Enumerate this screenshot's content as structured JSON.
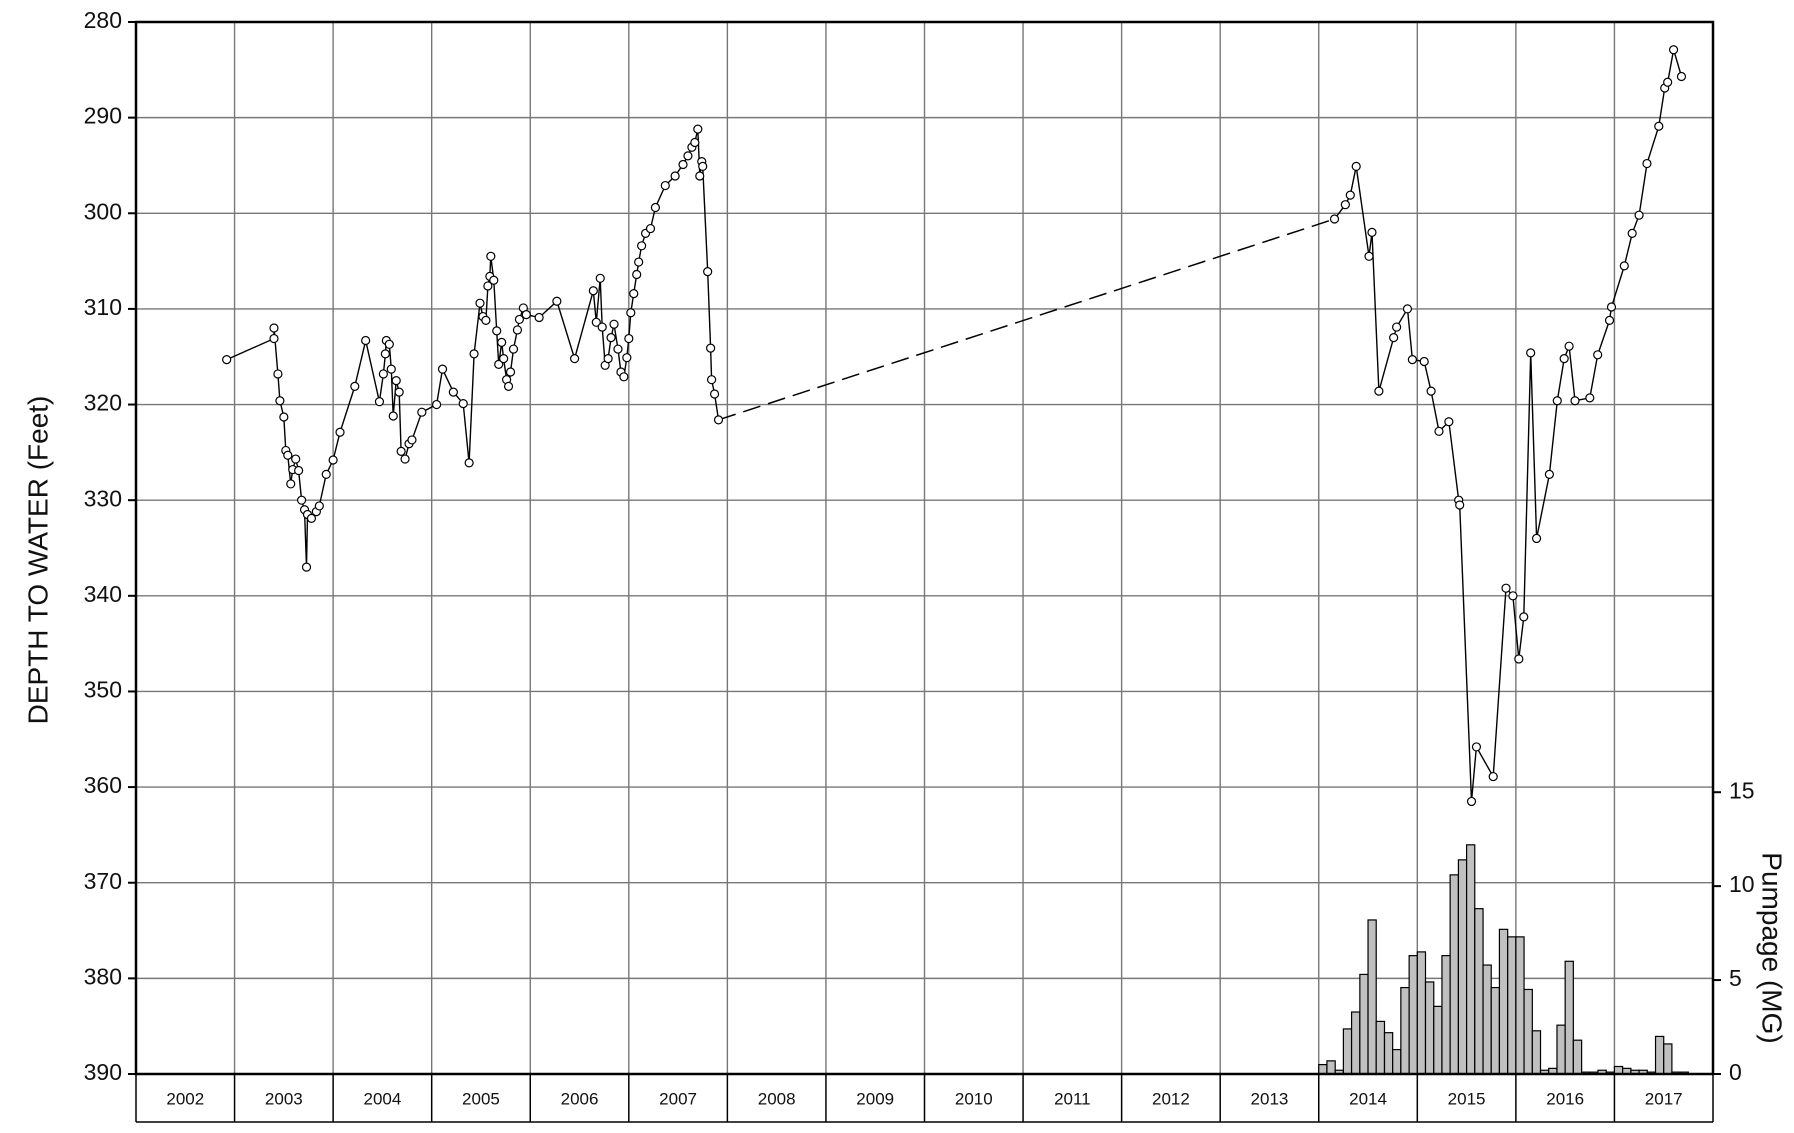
{
  "chart_data": {
    "type": "line",
    "ylabel": "DEPTH TO WATER (Feet)",
    "y2label": "Pumpage (MG)",
    "xlim": [
      2002,
      2018
    ],
    "xticks": [
      2002,
      2003,
      2004,
      2005,
      2006,
      2007,
      2008,
      2009,
      2010,
      2011,
      2012,
      2013,
      2014,
      2015,
      2016,
      2017
    ],
    "ylim": [
      280,
      390
    ],
    "y_reversed": true,
    "yticks": [
      280,
      290,
      300,
      310,
      320,
      330,
      340,
      350,
      360,
      370,
      380,
      390
    ],
    "y2lim": [
      0,
      56
    ],
    "y2ticks": [
      0,
      5,
      10,
      15
    ],
    "grid": true,
    "gap_line": "dashed",
    "x": [
      2002.92,
      2003.4,
      2003.4,
      2003.44,
      2003.46,
      2003.5,
      2003.52,
      2003.54,
      2003.57,
      2003.59,
      2003.62,
      2003.65,
      2003.68,
      2003.71,
      2003.73,
      2003.74,
      2003.78,
      2003.83,
      2003.86,
      2003.93,
      2004.0,
      2004.07,
      2004.22,
      2004.33,
      2004.47,
      2004.51,
      2004.53,
      2004.54,
      2004.57,
      2004.59,
      2004.61,
      2004.64,
      2004.67,
      2004.69,
      2004.73,
      2004.77,
      2004.8,
      2004.9,
      2005.05,
      2005.11,
      2005.22,
      2005.32,
      2005.38,
      2005.43,
      2005.49,
      2005.52,
      2005.55,
      2005.57,
      2005.59,
      2005.6,
      2005.63,
      2005.66,
      2005.68,
      2005.71,
      2005.73,
      2005.76,
      2005.78,
      2005.8,
      2005.83,
      2005.87,
      2005.89,
      2005.93,
      2005.96,
      2006.09,
      2006.27,
      2006.45,
      2006.64,
      2006.67,
      2006.71,
      2006.73,
      2006.76,
      2006.79,
      2006.82,
      2006.85,
      2006.89,
      2006.92,
      2006.95,
      2006.98,
      2007.0,
      2007.02,
      2007.05,
      2007.08,
      2007.1,
      2007.13,
      2007.17,
      2007.22,
      2007.27,
      2007.37,
      2007.47,
      2007.55,
      2007.6,
      2007.64,
      2007.67,
      2007.7,
      2007.72,
      2007.74,
      2007.75,
      2007.8,
      2007.83,
      2007.84,
      2007.87,
      2007.91,
      null,
      2014.16,
      2014.27,
      2014.32,
      2014.38,
      2014.51,
      2014.54,
      2014.61,
      2014.76,
      2014.79,
      2014.9,
      2014.95,
      2015.07,
      2015.14,
      2015.22,
      2015.32,
      2015.42,
      2015.43,
      2015.55,
      2015.6,
      2015.77,
      2015.9,
      2015.97,
      2016.03,
      2016.08,
      2016.15,
      2016.21,
      2016.34,
      2016.42,
      2016.49,
      2016.54,
      2016.6,
      2016.75,
      2016.83,
      2016.95,
      2016.97,
      2017.1,
      2017.18,
      2017.25,
      2017.33,
      2017.45,
      2017.51,
      2017.54,
      2017.6,
      2017.68
    ],
    "series": [
      {
        "color": "#000000",
        "marker": "circle",
        "values": [
          315.3,
          313.1,
          312.0,
          316.8,
          319.6,
          321.3,
          324.8,
          325.3,
          328.3,
          326.8,
          325.7,
          326.9,
          330.0,
          331.0,
          337.0,
          331.5,
          331.9,
          331.2,
          330.6,
          327.3,
          325.8,
          322.9,
          318.1,
          313.3,
          319.7,
          316.8,
          314.7,
          313.3,
          313.7,
          316.3,
          321.2,
          317.5,
          318.7,
          324.9,
          325.7,
          324.1,
          323.7,
          320.8,
          320.0,
          316.3,
          318.7,
          319.9,
          326.1,
          314.7,
          309.4,
          310.8,
          311.2,
          307.6,
          306.6,
          304.5,
          307.0,
          312.3,
          315.8,
          313.5,
          315.2,
          317.4,
          318.1,
          316.6,
          314.2,
          312.2,
          311.1,
          309.9,
          310.6,
          310.9,
          309.2,
          315.2,
          308.1,
          311.4,
          306.8,
          311.9,
          315.9,
          315.2,
          313.0,
          311.6,
          314.2,
          316.6,
          317.1,
          315.1,
          313.1,
          310.4,
          308.4,
          306.4,
          305.1,
          303.4,
          302.1,
          301.6,
          299.4,
          297.1,
          296.1,
          294.9,
          294.0,
          293.1,
          292.6,
          291.2,
          296.1,
          294.6,
          295.1,
          306.1,
          314.1,
          317.4,
          318.9,
          321.6,
          null,
          300.6,
          299.1,
          298.1,
          295.1,
          304.5,
          302.0,
          318.6,
          313.0,
          311.9,
          310.0,
          315.3,
          315.5,
          318.6,
          322.8,
          321.8,
          330.0,
          330.5,
          361.5,
          355.8,
          358.9,
          339.2,
          340.0,
          346.6,
          342.2,
          314.6,
          334.0,
          327.3,
          319.6,
          315.2,
          313.9,
          319.6,
          319.3,
          314.8,
          311.2,
          309.8,
          305.5,
          302.1,
          300.2,
          294.8,
          290.9,
          286.9,
          286.3,
          282.9,
          285.7
        ]
      },
      {
        "type": "histogram",
        "axis": "y2",
        "color": "#c0c0c0",
        "bins": [
          2014.0,
          2014.083,
          2014.167,
          2014.25,
          2014.333,
          2014.417,
          2014.5,
          2014.583,
          2014.667,
          2014.75,
          2014.833,
          2014.917,
          2015.0,
          2015.083,
          2015.167,
          2015.25,
          2015.333,
          2015.417,
          2015.5,
          2015.583,
          2015.667,
          2015.75,
          2015.833,
          2015.917,
          2016.0,
          2016.083,
          2016.167,
          2016.25,
          2016.333,
          2016.417,
          2016.5,
          2016.583,
          2016.667,
          2016.75,
          2016.833,
          2016.917,
          2017.0,
          2017.083,
          2017.167,
          2017.25,
          2017.333,
          2017.417,
          2017.5,
          2017.583,
          2017.667,
          2017.75
        ],
        "values": [
          0.5,
          0.7,
          0.2,
          2.4,
          3.3,
          5.3,
          8.2,
          2.8,
          2.2,
          1.3,
          4.6,
          6.3,
          6.5,
          4.9,
          3.6,
          6.3,
          10.6,
          11.4,
          12.2,
          8.8,
          5.8,
          4.6,
          7.7,
          7.3,
          7.3,
          4.5,
          2.3,
          0.2,
          0.3,
          2.6,
          6.0,
          1.8,
          0.1,
          0.1,
          0.2,
          0.1,
          0.4,
          0.3,
          0.2,
          0.2,
          0.1,
          2.0,
          1.6,
          0.1,
          0.1
        ]
      }
    ]
  }
}
